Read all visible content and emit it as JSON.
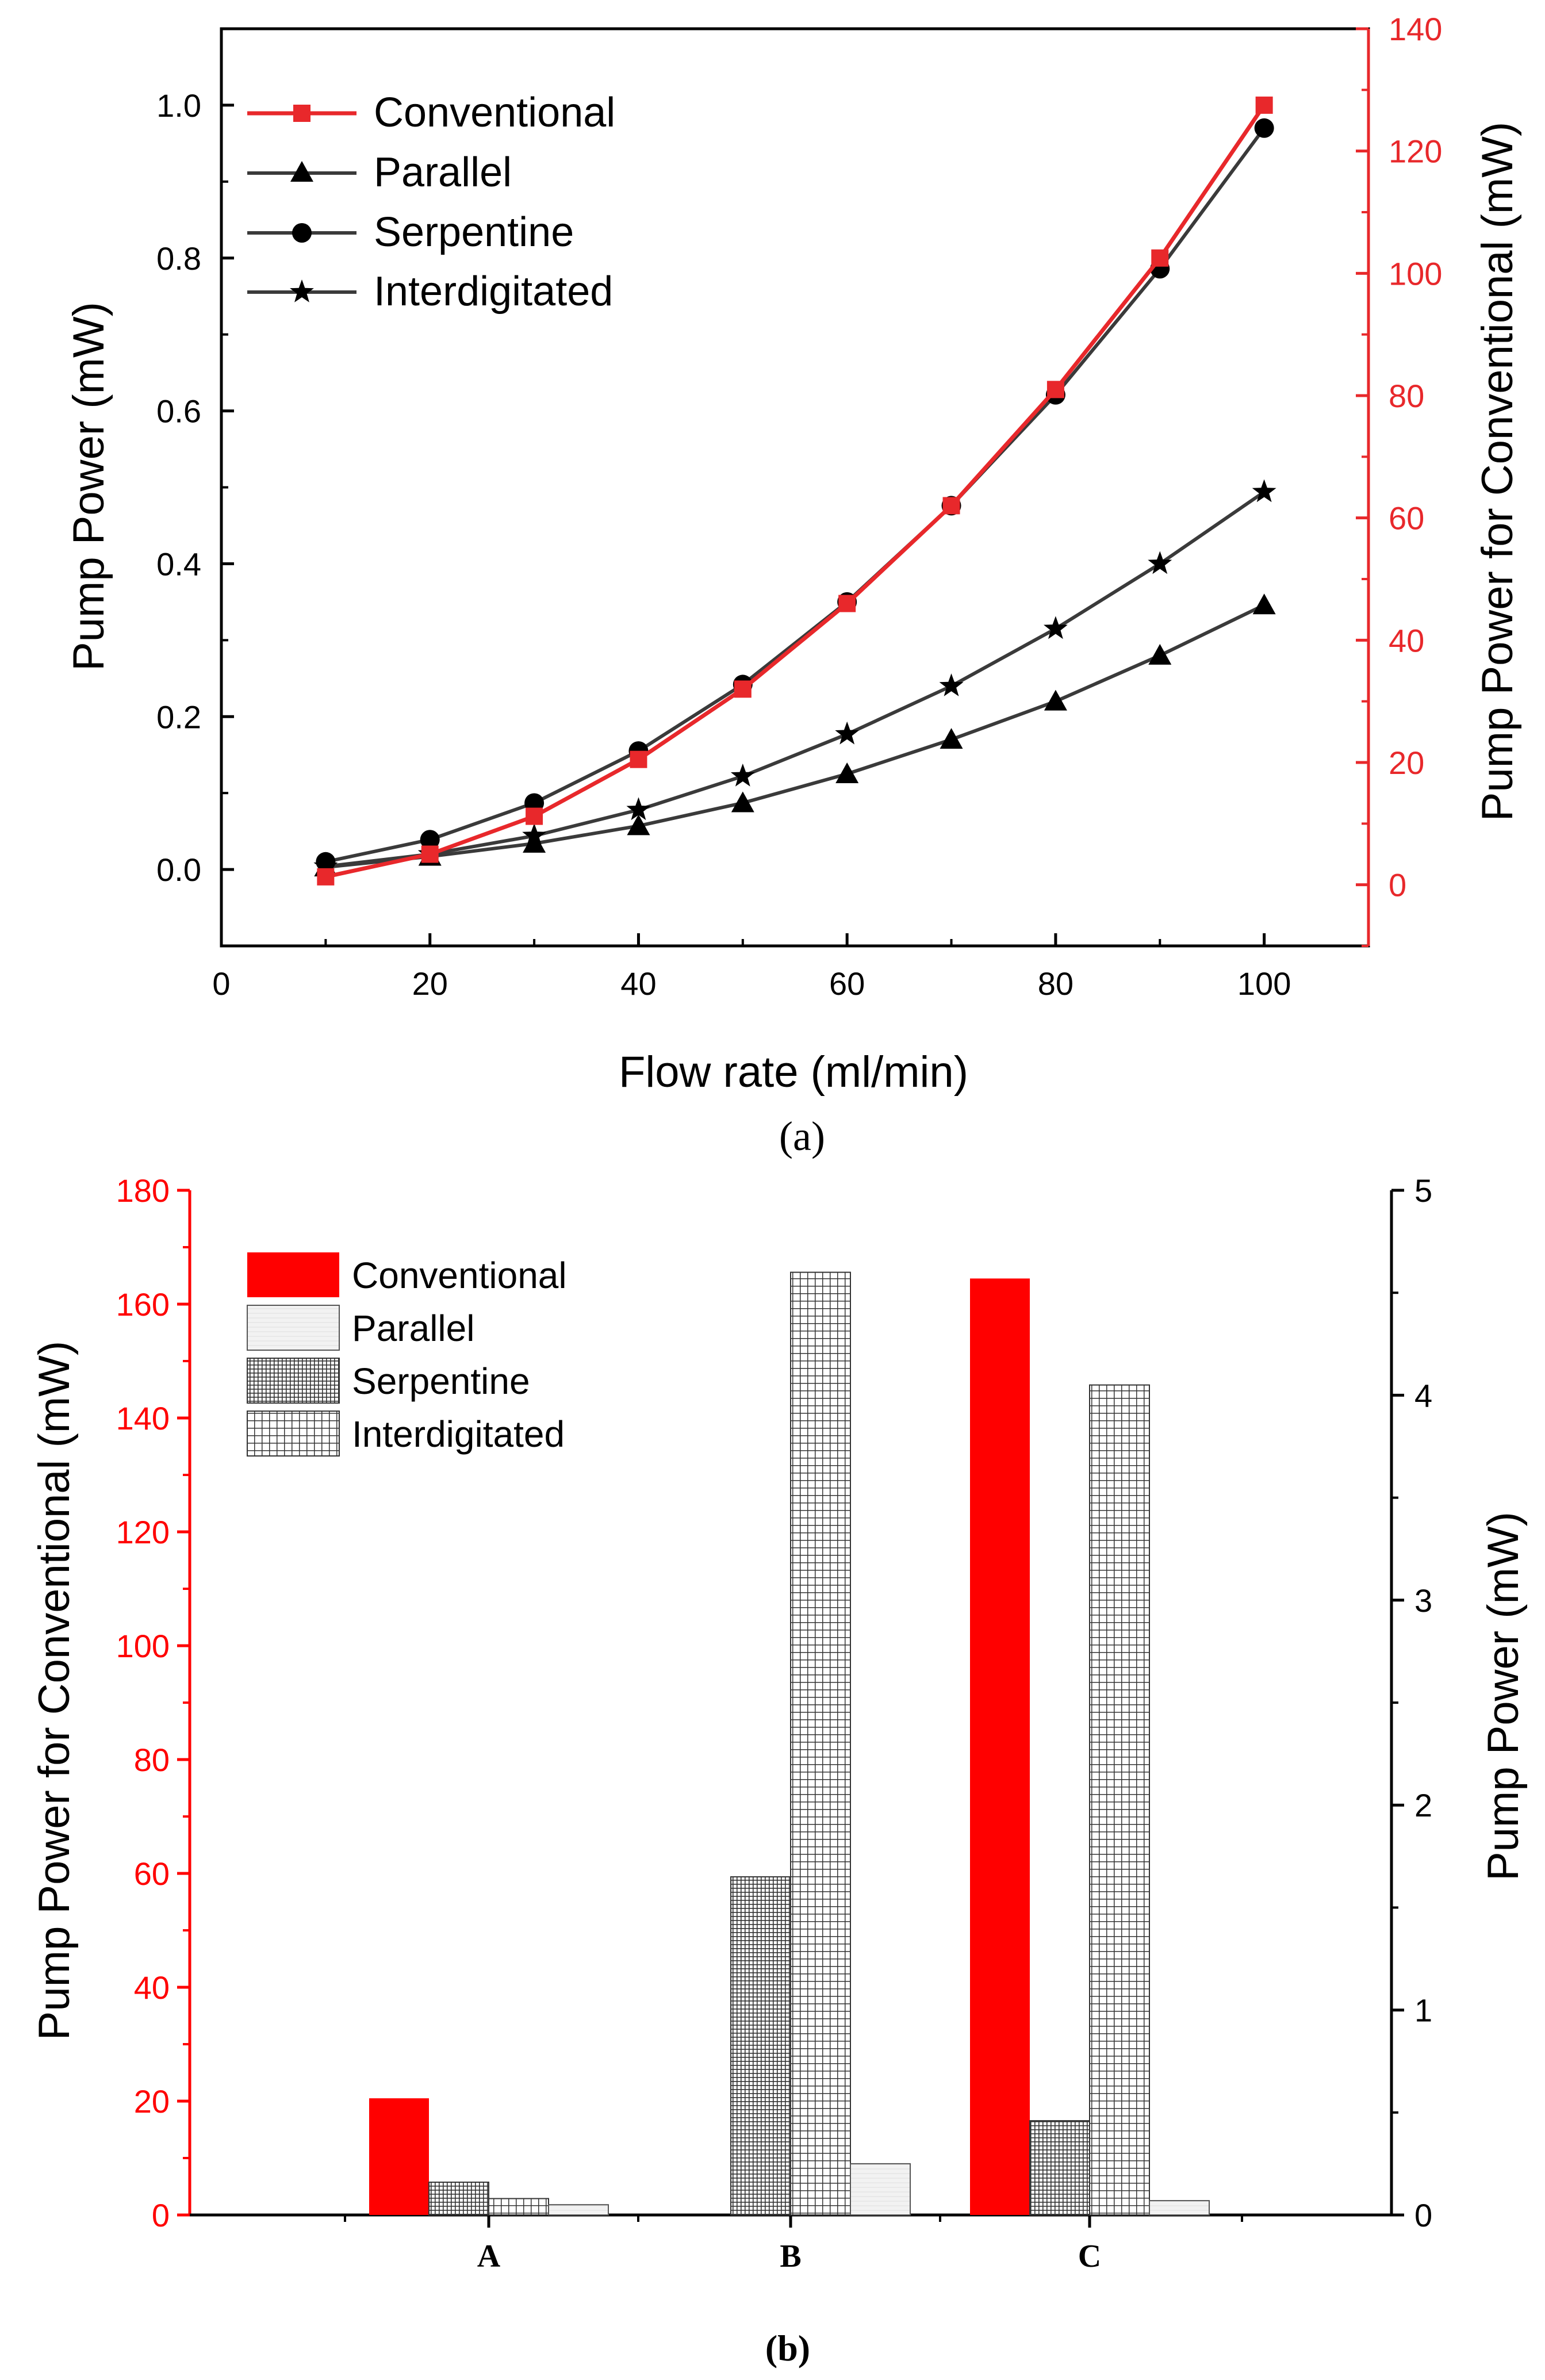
{
  "colors": {
    "red": "#e8282b",
    "bright_red": "#ff0000",
    "dark": "#3a3a3a",
    "black": "#000000"
  },
  "panel_a": {
    "caption": "(a)",
    "chart_data": {
      "type": "line",
      "x": [
        10,
        20,
        30,
        40,
        50,
        60,
        70,
        80,
        90,
        100
      ],
      "xlabel": "Flow rate (ml/min)",
      "ylabel": "Pump Power (mW)",
      "y2label": "Pump Power for Conventional (mW)",
      "xlim": [
        0,
        110
      ],
      "ylim": [
        -0.1,
        1.1
      ],
      "y2lim": [
        -10,
        140
      ],
      "xticks": [
        0,
        20,
        40,
        60,
        80,
        100
      ],
      "yticks": [
        0.0,
        0.2,
        0.4,
        0.6,
        0.8,
        1.0
      ],
      "y2ticks": [
        0,
        20,
        40,
        60,
        80,
        100,
        120,
        140
      ],
      "ytick_labels": [
        "0.0",
        "0.2",
        "0.4",
        "0.6",
        "0.8",
        "1.0"
      ],
      "legend_position": "top-left",
      "series": [
        {
          "name": "Conventional",
          "axis": "right",
          "marker": "square",
          "color": "#e8282b",
          "values": [
            1.3,
            5.0,
            11.2,
            20.5,
            32.0,
            46.0,
            62.0,
            81.0,
            102.5,
            127.5
          ]
        },
        {
          "name": "Parallel",
          "axis": "left",
          "marker": "triangle",
          "color": "#3a3a3a",
          "values": [
            0.003,
            0.017,
            0.034,
            0.057,
            0.087,
            0.125,
            0.17,
            0.22,
            0.28,
            0.346
          ]
        },
        {
          "name": "Serpentine",
          "axis": "left",
          "marker": "circle",
          "color": "#3a3a3a",
          "values": [
            0.01,
            0.039,
            0.087,
            0.155,
            0.242,
            0.35,
            0.476,
            0.621,
            0.786,
            0.97
          ]
        },
        {
          "name": "Interdigitated",
          "axis": "left",
          "marker": "star",
          "color": "#3a3a3a",
          "values": [
            0.004,
            0.02,
            0.044,
            0.078,
            0.122,
            0.177,
            0.24,
            0.315,
            0.4,
            0.494
          ]
        }
      ]
    }
  },
  "panel_b": {
    "caption": "(b)",
    "chart_data": {
      "type": "bar",
      "categories": [
        "A",
        "B",
        "C"
      ],
      "ylabel": "Pump Power for Conventional (mW)",
      "y2label": "Pump Power (mW)",
      "ylim": [
        0,
        180
      ],
      "y2lim": [
        0,
        5
      ],
      "yticks": [
        0,
        20,
        40,
        60,
        80,
        100,
        120,
        140,
        160,
        180
      ],
      "y2ticks": [
        0,
        1,
        2,
        3,
        4,
        5
      ],
      "legend_position": "top-left",
      "series": [
        {
          "name": "Conventional",
          "axis": "left",
          "pattern": "solid-red",
          "values": [
            20.5,
            0,
            164.5
          ]
        },
        {
          "name": "Parallel",
          "axis": "right",
          "pattern": "light",
          "values": [
            0.05,
            0.25,
            0.07
          ]
        },
        {
          "name": "Serpentine",
          "axis": "right",
          "pattern": "fine-grid",
          "values": [
            0.16,
            1.65,
            0.46
          ]
        },
        {
          "name": "Interdigitated",
          "axis": "right",
          "pattern": "grid",
          "values": [
            0.08,
            4.6,
            4.05
          ]
        }
      ]
    }
  }
}
